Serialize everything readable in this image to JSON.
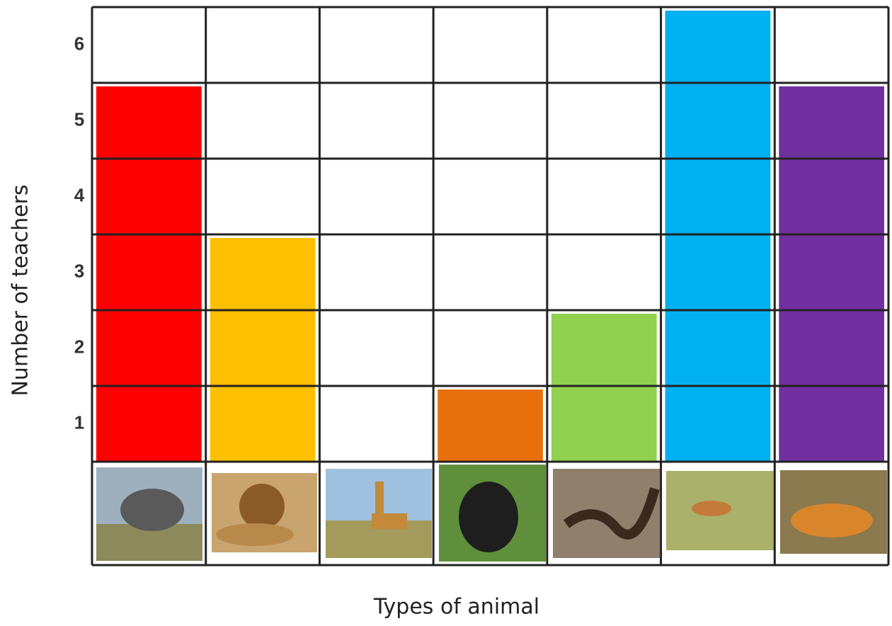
{
  "chart_data": {
    "type": "bar",
    "x_label": "Types of animal",
    "y_label": "Number of teachers",
    "categories": [
      null,
      null,
      null,
      null,
      null,
      null,
      null
    ],
    "values": [
      5,
      3,
      0,
      1,
      2,
      6,
      5
    ],
    "colors": [
      "#ff0000",
      "#ffc000",
      null,
      "#e8700c",
      "#92d050",
      "#00b0f0",
      "#7030a0"
    ],
    "ylim": [
      0,
      6
    ],
    "yticks": [
      1,
      2,
      3,
      4,
      5,
      6
    ],
    "grid": true
  }
}
